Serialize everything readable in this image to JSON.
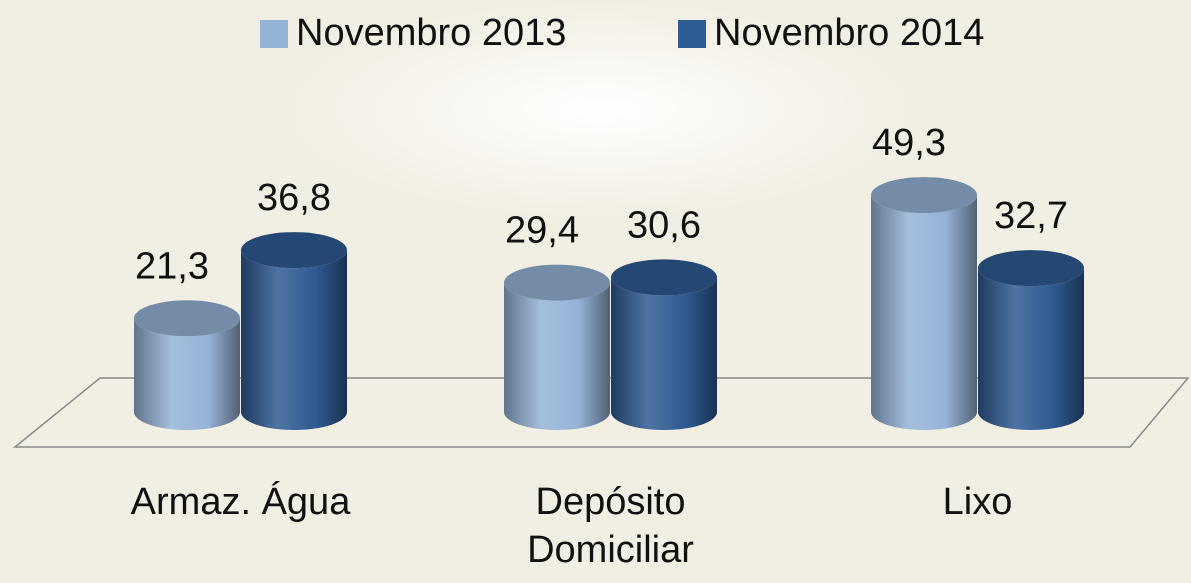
{
  "chart_data": {
    "type": "bar3d",
    "categories": [
      "Armaz. Água",
      "Depósito Domiciliar",
      "Lixo"
    ],
    "series": [
      {
        "name": "Novembro 2013",
        "color": "#95b3d7",
        "values": [
          21.3,
          29.4,
          49.3
        ],
        "value_labels": [
          "21,3",
          "29,4",
          "49,3"
        ]
      },
      {
        "name": "Novembro 2014",
        "color": "#2f5b93",
        "values": [
          36.8,
          30.6,
          32.7
        ],
        "value_labels": [
          "36,8",
          "30,6",
          "32,7"
        ]
      }
    ],
    "legend": "top"
  }
}
